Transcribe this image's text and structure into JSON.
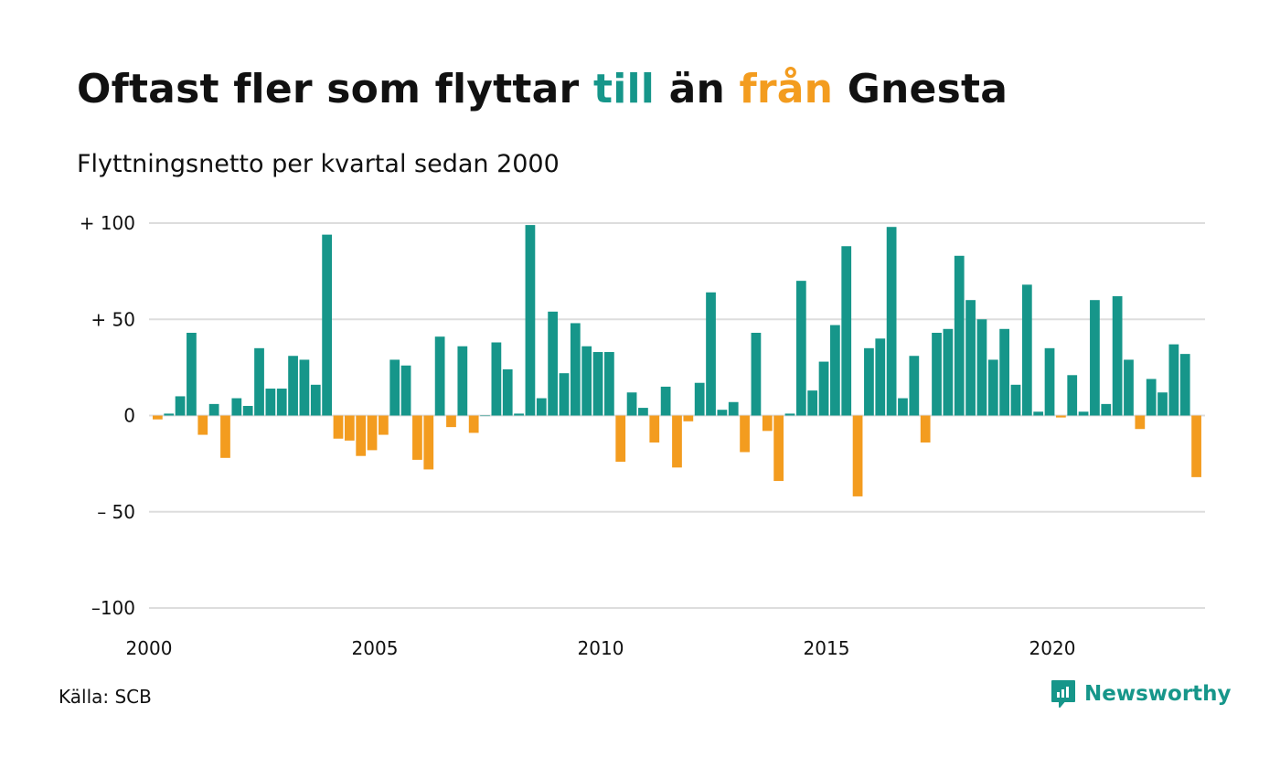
{
  "title": {
    "part1": "Oftast fler som flyttar ",
    "till": "till",
    "part2": " än ",
    "fran": "från",
    "part3": " Gnesta"
  },
  "subtitle": "Flyttningsnetto per kvartal sedan 2000",
  "source": "Källa: SCB",
  "brand": {
    "name": "Newsworthy",
    "icon": "newsworthy-logo-icon"
  },
  "colors": {
    "positive": "#16968a",
    "negative": "#f39c1f",
    "grid": "#dddddd",
    "text": "#111111"
  },
  "chart_data": {
    "type": "bar",
    "x_start": 2000.0,
    "x_step": 0.25,
    "ylim": [
      -100,
      100
    ],
    "y_ticks": [
      {
        "value": 100,
        "label": "+ 100"
      },
      {
        "value": 50,
        "label": "+  50"
      },
      {
        "value": 0,
        "label": "0"
      },
      {
        "value": -50,
        "label": "– 50"
      },
      {
        "value": -100,
        "label": "–100"
      }
    ],
    "x_ticks": [
      {
        "value": 2000,
        "label": "2000"
      },
      {
        "value": 2005,
        "label": "2005"
      },
      {
        "value": 2010,
        "label": "2010"
      },
      {
        "value": 2015,
        "label": "2015"
      },
      {
        "value": 2020,
        "label": "2020"
      }
    ],
    "grid": true,
    "values": [
      -2,
      1,
      10,
      43,
      -10,
      6,
      -22,
      9,
      5,
      35,
      14,
      14,
      31,
      29,
      16,
      94,
      -12,
      -13,
      -21,
      -18,
      -10,
      29,
      26,
      -23,
      -28,
      41,
      -6,
      36,
      -9,
      0,
      38,
      24,
      1,
      99,
      9,
      54,
      22,
      48,
      36,
      33,
      33,
      -24,
      12,
      4,
      -14,
      15,
      -27,
      -3,
      17,
      64,
      3,
      7,
      -19,
      43,
      -8,
      -34,
      1,
      70,
      13,
      28,
      47,
      88,
      -42,
      35,
      40,
      98,
      9,
      31,
      -14,
      43,
      45,
      83,
      60,
      50,
      29,
      45,
      16,
      68,
      2,
      35,
      -1,
      21,
      2,
      60,
      6,
      62,
      29,
      -7,
      19,
      12,
      37,
      32,
      -32
    ]
  }
}
